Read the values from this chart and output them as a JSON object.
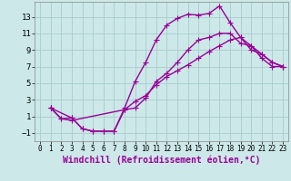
{
  "xlabel": "Windchill (Refroidissement éolien,°C)",
  "bg_color": "#cce8e8",
  "line_color": "#990099",
  "grid_color": "#aacccc",
  "xlim": [
    -0.5,
    23.5
  ],
  "ylim": [
    -2.0,
    14.8
  ],
  "xticks": [
    0,
    1,
    2,
    3,
    4,
    5,
    6,
    7,
    8,
    9,
    10,
    11,
    12,
    13,
    14,
    15,
    16,
    17,
    18,
    19,
    20,
    21,
    22,
    23
  ],
  "yticks": [
    -1,
    1,
    3,
    5,
    7,
    9,
    11,
    13
  ],
  "line1_x": [
    1,
    2,
    3,
    4,
    5,
    6,
    7,
    8,
    9,
    10,
    11,
    12,
    13,
    14,
    15,
    16,
    17,
    18,
    19,
    20,
    21,
    22,
    23
  ],
  "line1_y": [
    2,
    0.7,
    0.8,
    -0.5,
    -0.8,
    -0.8,
    -0.8,
    2.0,
    5.2,
    7.5,
    10.2,
    12.0,
    12.8,
    13.3,
    13.2,
    13.4,
    14.3,
    12.3,
    10.5,
    9.0,
    8.5,
    7.5,
    7.0
  ],
  "line2_x": [
    1,
    3,
    4,
    5,
    6,
    7,
    8,
    9,
    10,
    11,
    12,
    13,
    14,
    15,
    16,
    17,
    18,
    19,
    20,
    21,
    22,
    23
  ],
  "line2_y": [
    2,
    0.8,
    -0.5,
    -0.8,
    -0.8,
    -0.8,
    1.8,
    2.0,
    3.2,
    5.2,
    6.2,
    7.5,
    9.0,
    10.2,
    10.5,
    11.0,
    11.0,
    9.8,
    9.5,
    8.0,
    7.0,
    7.0
  ],
  "line3_x": [
    1,
    2,
    3,
    8,
    9,
    10,
    11,
    12,
    13,
    14,
    15,
    16,
    17,
    18,
    19,
    20,
    21,
    22,
    23
  ],
  "line3_y": [
    2,
    0.7,
    0.5,
    1.8,
    2.8,
    3.5,
    4.8,
    5.8,
    6.5,
    7.2,
    8.0,
    8.8,
    9.5,
    10.2,
    10.5,
    9.5,
    8.5,
    7.5,
    7.0
  ],
  "marker": "+",
  "markersize": 4,
  "linewidth": 1.0,
  "tick_fontsize": 5.5,
  "xlabel_fontsize": 7.0
}
